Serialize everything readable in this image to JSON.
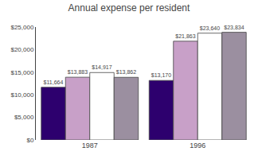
{
  "chart_data": {
    "type": "bar",
    "title": "Annual expense per resident",
    "categories": [
      "1987",
      "1996"
    ],
    "series": [
      {
        "color": "#2d006e",
        "values": [
          11664,
          13170
        ],
        "value_labels": [
          "$11,664",
          "$13,170"
        ]
      },
      {
        "color": "#c8a0c8",
        "values": [
          13883,
          21863
        ],
        "value_labels": [
          "$13,883",
          "$21,863"
        ]
      },
      {
        "color": "#ffffff",
        "values": [
          14917,
          23640
        ],
        "value_labels": [
          "$14,917",
          "$23,640"
        ]
      },
      {
        "color": "#9b8fa0",
        "values": [
          13862,
          23834
        ],
        "value_labels": [
          "$13,862",
          "$23,834"
        ]
      }
    ],
    "ylim": [
      0,
      25000
    ],
    "yticks": [
      {
        "value": 0,
        "label": "$0"
      },
      {
        "value": 5000,
        "label": "$5,000"
      },
      {
        "value": 10000,
        "label": "$10,000"
      },
      {
        "value": 15000,
        "label": "$15,000"
      },
      {
        "value": 20000,
        "label": "$20,000"
      },
      {
        "value": 25000,
        "label": "$25,000"
      }
    ],
    "data_labels": true,
    "grid": false
  }
}
